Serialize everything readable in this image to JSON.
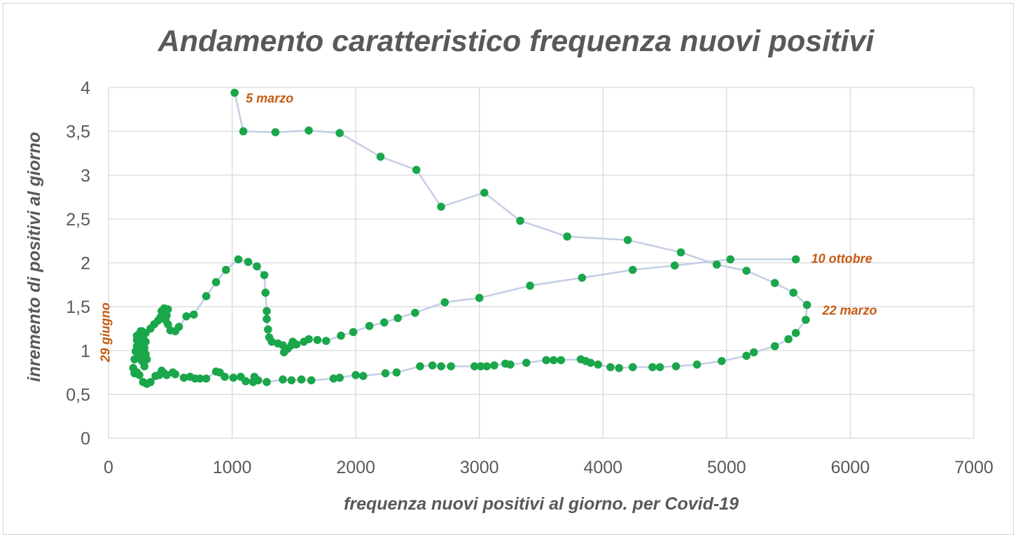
{
  "chart_data": {
    "type": "scatter",
    "title": "Andamento caratteristico frequenza nuovi positivi",
    "xlabel": "frequenza nuovi positivi al giorno. per Covid-19",
    "ylabel": "inremento di positivi al giorno",
    "xlim": [
      0,
      7000
    ],
    "ylim": [
      0,
      4
    ],
    "x_ticks": [
      0,
      1000,
      2000,
      3000,
      4000,
      5000,
      6000,
      7000
    ],
    "x_tick_labels": [
      "0",
      "1000",
      "2000",
      "3000",
      "4000",
      "5000",
      "6000",
      "7000"
    ],
    "y_ticks": [
      0,
      0.5,
      1,
      1.5,
      2,
      2.5,
      3,
      3.5,
      4
    ],
    "y_tick_labels": [
      "0",
      "0,5",
      "1",
      "1,5",
      "2",
      "2,5",
      "3",
      "3,5",
      "4"
    ],
    "grid": true,
    "legend": "none",
    "colors": {
      "points": "#1aa64a",
      "line": "#c5cfe6",
      "annotations": "#c55a11",
      "grid": "#d9d9d9",
      "text": "#595959"
    },
    "annotations": [
      {
        "text": "5 marzo",
        "x": 1020,
        "y": 3.94
      },
      {
        "text": "22 marzo",
        "x": 5650,
        "y": 1.52
      },
      {
        "text": "29 giugno",
        "x": 200,
        "y": 1.0
      },
      {
        "text": "10 ottobre",
        "x": 5560,
        "y": 2.04
      }
    ],
    "series": [
      {
        "points": [
          [
            1020,
            3.94
          ],
          [
            1090,
            3.5
          ],
          [
            1350,
            3.49
          ],
          [
            1620,
            3.51
          ],
          [
            1870,
            3.48
          ],
          [
            2200,
            3.21
          ],
          [
            2490,
            3.06
          ],
          [
            2690,
            2.64
          ],
          [
            3040,
            2.8
          ],
          [
            3330,
            2.48
          ],
          [
            3710,
            2.3
          ],
          [
            4200,
            2.26
          ],
          [
            4630,
            2.12
          ],
          [
            4920,
            1.98
          ],
          [
            5160,
            1.91
          ],
          [
            5390,
            1.77
          ],
          [
            5540,
            1.66
          ],
          [
            5650,
            1.52
          ],
          [
            5640,
            1.35
          ],
          [
            5560,
            1.2
          ],
          [
            5500,
            1.13
          ],
          [
            5390,
            1.05
          ],
          [
            5220,
            0.98
          ],
          [
            5160,
            0.94
          ],
          [
            4960,
            0.88
          ],
          [
            4760,
            0.84
          ],
          [
            4590,
            0.82
          ],
          [
            4460,
            0.81
          ],
          [
            4400,
            0.81
          ],
          [
            4240,
            0.81
          ],
          [
            4130,
            0.8
          ],
          [
            4060,
            0.81
          ],
          [
            3960,
            0.84
          ],
          [
            3900,
            0.86
          ],
          [
            3860,
            0.88
          ],
          [
            3820,
            0.9
          ],
          [
            3660,
            0.89
          ],
          [
            3600,
            0.89
          ],
          [
            3540,
            0.89
          ],
          [
            3380,
            0.86
          ],
          [
            3250,
            0.84
          ],
          [
            3210,
            0.85
          ],
          [
            3120,
            0.83
          ],
          [
            3060,
            0.82
          ],
          [
            3010,
            0.82
          ],
          [
            2960,
            0.82
          ],
          [
            2770,
            0.82
          ],
          [
            2690,
            0.82
          ],
          [
            2620,
            0.83
          ],
          [
            2520,
            0.82
          ],
          [
            2330,
            0.75
          ],
          [
            2240,
            0.74
          ],
          [
            2060,
            0.71
          ],
          [
            2000,
            0.72
          ],
          [
            1870,
            0.69
          ],
          [
            1820,
            0.68
          ],
          [
            1640,
            0.66
          ],
          [
            1560,
            0.67
          ],
          [
            1480,
            0.66
          ],
          [
            1410,
            0.67
          ],
          [
            1280,
            0.64
          ],
          [
            1210,
            0.66
          ],
          [
            1170,
            0.64
          ],
          [
            1180,
            0.7
          ],
          [
            1110,
            0.65
          ],
          [
            1070,
            0.7
          ],
          [
            1010,
            0.69
          ],
          [
            940,
            0.7
          ],
          [
            900,
            0.75
          ],
          [
            870,
            0.76
          ],
          [
            790,
            0.68
          ],
          [
            740,
            0.68
          ],
          [
            700,
            0.68
          ],
          [
            660,
            0.7
          ],
          [
            610,
            0.69
          ],
          [
            540,
            0.73
          ],
          [
            520,
            0.75
          ],
          [
            470,
            0.72
          ],
          [
            450,
            0.74
          ],
          [
            430,
            0.77
          ],
          [
            410,
            0.72
          ],
          [
            380,
            0.71
          ],
          [
            340,
            0.64
          ],
          [
            310,
            0.62
          ],
          [
            280,
            0.64
          ],
          [
            250,
            0.72
          ],
          [
            230,
            0.75
          ],
          [
            210,
            0.74
          ],
          [
            200,
            0.8
          ],
          [
            210,
            0.9
          ],
          [
            220,
            0.99
          ],
          [
            230,
            1.05
          ],
          [
            250,
            1.12
          ],
          [
            260,
            1.18
          ],
          [
            270,
            1.22
          ],
          [
            280,
            1.15
          ],
          [
            300,
            1.1
          ],
          [
            290,
            1.03
          ],
          [
            270,
            0.98
          ],
          [
            260,
            0.94
          ],
          [
            270,
            0.88
          ],
          [
            290,
            0.82
          ],
          [
            310,
            0.9
          ],
          [
            300,
            0.96
          ],
          [
            280,
            1.02
          ],
          [
            250,
            1.06
          ],
          [
            230,
            1.12
          ],
          [
            230,
            1.17
          ],
          [
            260,
            1.22
          ],
          [
            300,
            1.2
          ],
          [
            340,
            1.25
          ],
          [
            370,
            1.3
          ],
          [
            400,
            1.34
          ],
          [
            420,
            1.38
          ],
          [
            430,
            1.45
          ],
          [
            450,
            1.48
          ],
          [
            480,
            1.47
          ],
          [
            470,
            1.4
          ],
          [
            460,
            1.35
          ],
          [
            480,
            1.3
          ],
          [
            500,
            1.23
          ],
          [
            540,
            1.22
          ],
          [
            570,
            1.27
          ],
          [
            630,
            1.39
          ],
          [
            690,
            1.41
          ],
          [
            790,
            1.62
          ],
          [
            870,
            1.78
          ],
          [
            950,
            1.92
          ],
          [
            1050,
            2.04
          ],
          [
            1130,
            2.01
          ],
          [
            1200,
            1.96
          ],
          [
            1260,
            1.86
          ],
          [
            1270,
            1.66
          ],
          [
            1280,
            1.45
          ],
          [
            1280,
            1.36
          ],
          [
            1290,
            1.24
          ],
          [
            1300,
            1.15
          ],
          [
            1320,
            1.1
          ],
          [
            1370,
            1.08
          ],
          [
            1410,
            1.06
          ],
          [
            1420,
            0.98
          ],
          [
            1450,
            1.02
          ],
          [
            1480,
            1.06
          ],
          [
            1490,
            1.1
          ],
          [
            1520,
            1.07
          ],
          [
            1580,
            1.1
          ],
          [
            1620,
            1.13
          ],
          [
            1690,
            1.12
          ],
          [
            1760,
            1.11
          ],
          [
            1880,
            1.17
          ],
          [
            1980,
            1.21
          ],
          [
            2110,
            1.28
          ],
          [
            2230,
            1.32
          ],
          [
            2340,
            1.37
          ],
          [
            2480,
            1.43
          ],
          [
            2720,
            1.55
          ],
          [
            3000,
            1.6
          ],
          [
            3410,
            1.74
          ],
          [
            3830,
            1.83
          ],
          [
            4240,
            1.92
          ],
          [
            4580,
            1.97
          ],
          [
            5030,
            2.04
          ],
          [
            5560,
            2.04
          ]
        ]
      }
    ]
  }
}
